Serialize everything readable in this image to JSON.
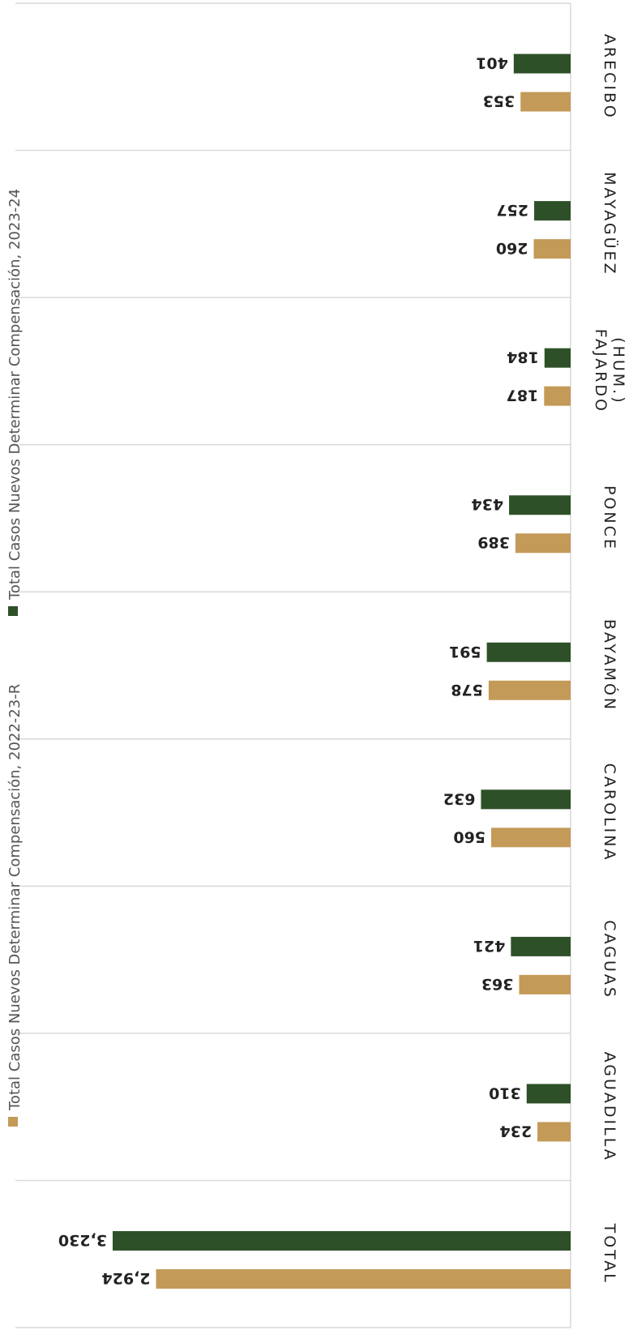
{
  "colors": {
    "series_2022": "#C49A58",
    "series_2023": "#2E5028",
    "grid": "#D9D9D9",
    "text": "#222222",
    "legend_text": "#555555"
  },
  "legend": [
    {
      "label": "Total Casos Nuevos Determinar Compensación, 2022-23-R",
      "color": "#C49A58"
    },
    {
      "label": "Total Casos Nuevos Determinar Compensación, 2023-24",
      "color": "#2E5028"
    }
  ],
  "chart_data": {
    "type": "bar",
    "orientation": "horizontal",
    "rotation_degrees": 180,
    "categories": [
      {
        "line1": "TOTAL",
        "line2": ""
      },
      {
        "line1": "AGUADILLA",
        "line2": ""
      },
      {
        "line1": "CAGUAS",
        "line2": ""
      },
      {
        "line1": "CAROLINA",
        "line2": ""
      },
      {
        "line1": "BAYAMÓN",
        "line2": ""
      },
      {
        "line1": "PONCE",
        "line2": ""
      },
      {
        "line1": "FAJARDO",
        "line2": "(HUM.)"
      },
      {
        "line1": "MAYAGÜEZ",
        "line2": ""
      },
      {
        "line1": "ARECIBO",
        "line2": ""
      }
    ],
    "series": [
      {
        "name": "Total Casos Nuevos Determinar Compensación, 2022-23-R",
        "color": "#C49A58",
        "values": [
          2924,
          234,
          363,
          560,
          578,
          389,
          187,
          260,
          353
        ],
        "labels": [
          "2,924",
          "234",
          "363",
          "560",
          "578",
          "389",
          "187",
          "260",
          "353"
        ]
      },
      {
        "name": "Total Casos Nuevos Determinar Compensación, 2023-24",
        "color": "#2E5028",
        "values": [
          3230,
          310,
          421,
          632,
          591,
          434,
          184,
          257,
          401
        ],
        "labels": [
          "3,230",
          "310",
          "421",
          "632",
          "591",
          "434",
          "184",
          "257",
          "401"
        ]
      }
    ],
    "xlim": [
      0,
      3500
    ],
    "grid": true,
    "legend_position": "right"
  }
}
